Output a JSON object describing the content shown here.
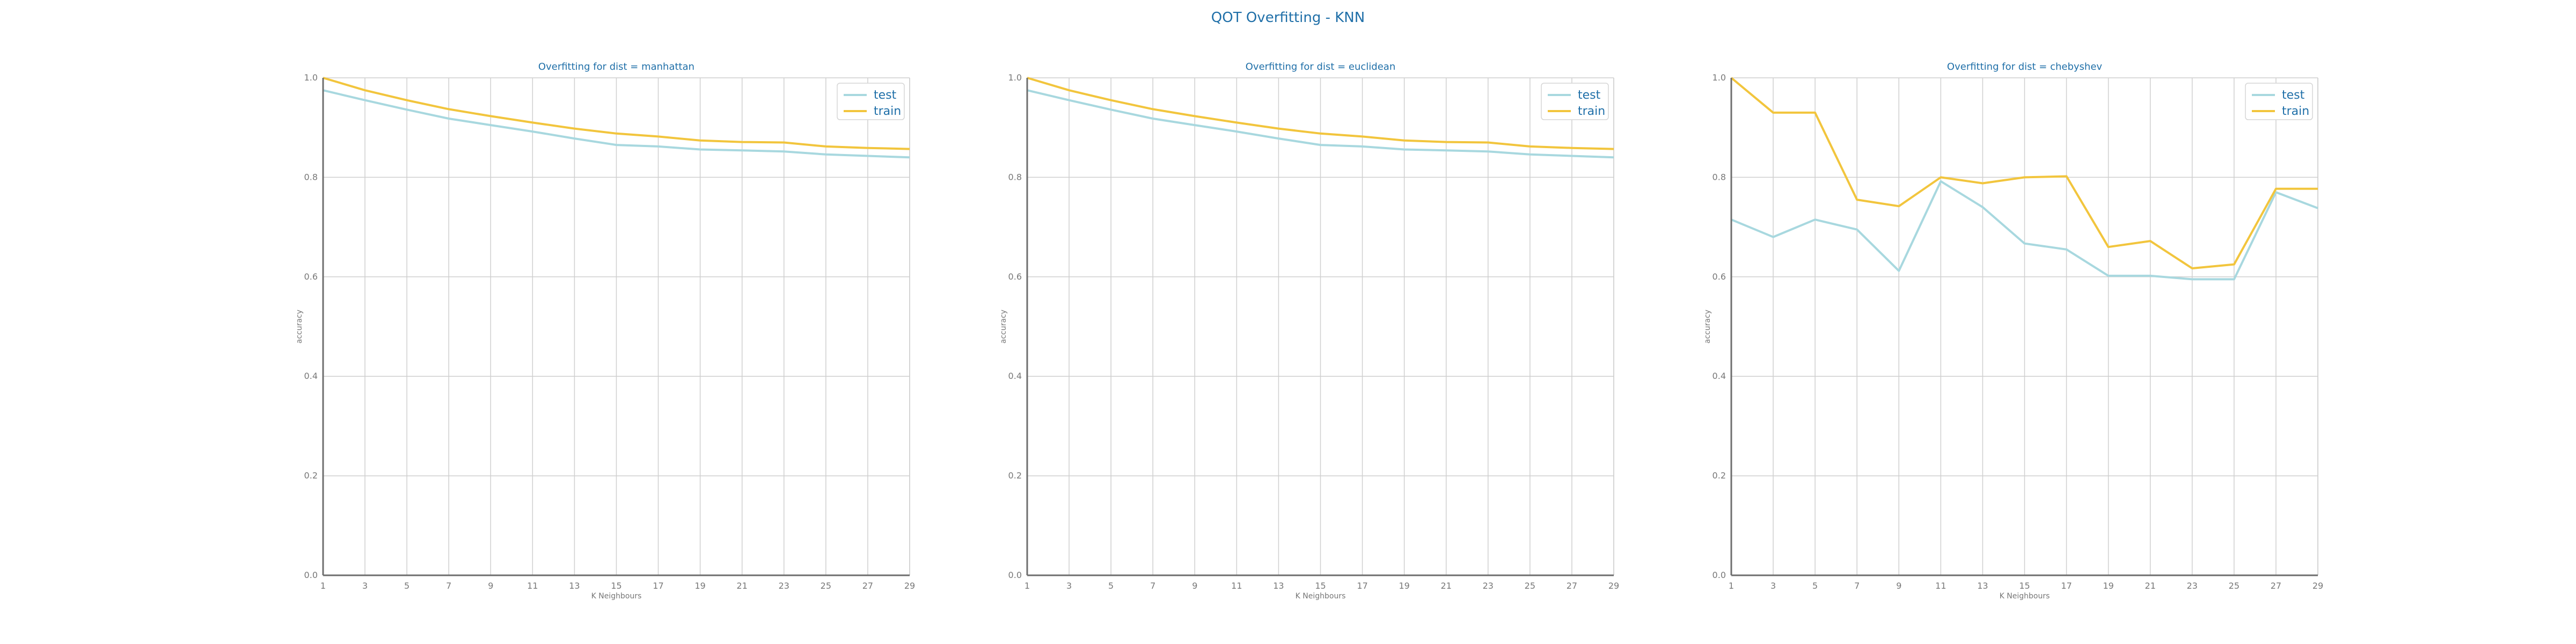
{
  "figure": {
    "title": "QOT Overfitting - KNN"
  },
  "colors": {
    "test": "#a8d8df",
    "train": "#f2c53d",
    "title": "#1f6fa8",
    "axis_text": "#777777",
    "grid": "#cfcfcf",
    "spine": "#6e6e6e"
  },
  "chart_data": [
    {
      "type": "line",
      "title": "Overfitting for dist = manhattan",
      "xlabel": "K Neighbours",
      "ylabel": "accuracy",
      "ylim": [
        0,
        1
      ],
      "xticks": [
        1,
        3,
        5,
        7,
        9,
        11,
        13,
        15,
        17,
        19,
        21,
        23,
        25,
        27,
        29
      ],
      "yticks": [
        "0.0",
        "0.2",
        "0.4",
        "0.6",
        "0.8",
        "1.0"
      ],
      "legend_position": "top-right",
      "x": [
        1,
        3,
        5,
        7,
        9,
        11,
        13,
        15,
        17,
        19,
        21,
        23,
        25,
        27,
        29
      ],
      "series": [
        {
          "name": "test",
          "values": [
            0.975,
            0.955,
            0.936,
            0.918,
            0.905,
            0.892,
            0.878,
            0.865,
            0.862,
            0.856,
            0.854,
            0.852,
            0.846,
            0.843,
            0.84
          ]
        },
        {
          "name": "train",
          "values": [
            1.0,
            0.975,
            0.955,
            0.937,
            0.923,
            0.91,
            0.898,
            0.888,
            0.882,
            0.874,
            0.871,
            0.87,
            0.862,
            0.859,
            0.857
          ]
        }
      ]
    },
    {
      "type": "line",
      "title": "Overfitting for dist = euclidean",
      "xlabel": "K Neighbours",
      "ylabel": "accuracy",
      "ylim": [
        0,
        1
      ],
      "xticks": [
        1,
        3,
        5,
        7,
        9,
        11,
        13,
        15,
        17,
        19,
        21,
        23,
        25,
        27,
        29
      ],
      "yticks": [
        "0.0",
        "0.2",
        "0.4",
        "0.6",
        "0.8",
        "1.0"
      ],
      "legend_position": "top-right",
      "x": [
        1,
        3,
        5,
        7,
        9,
        11,
        13,
        15,
        17,
        19,
        21,
        23,
        25,
        27,
        29
      ],
      "series": [
        {
          "name": "test",
          "values": [
            0.975,
            0.955,
            0.936,
            0.918,
            0.905,
            0.892,
            0.878,
            0.865,
            0.862,
            0.856,
            0.854,
            0.852,
            0.846,
            0.843,
            0.84
          ]
        },
        {
          "name": "train",
          "values": [
            1.0,
            0.975,
            0.955,
            0.937,
            0.923,
            0.91,
            0.898,
            0.888,
            0.882,
            0.874,
            0.871,
            0.87,
            0.862,
            0.859,
            0.857
          ]
        }
      ]
    },
    {
      "type": "line",
      "title": "Overfitting for dist = chebyshev",
      "xlabel": "K Neighbours",
      "ylabel": "accuracy",
      "ylim": [
        0,
        1
      ],
      "xticks": [
        1,
        3,
        5,
        7,
        9,
        11,
        13,
        15,
        17,
        19,
        21,
        23,
        25,
        27,
        29
      ],
      "yticks": [
        "0.0",
        "0.2",
        "0.4",
        "0.6",
        "0.8",
        "1.0"
      ],
      "legend_position": "top-right",
      "x": [
        1,
        3,
        5,
        7,
        9,
        11,
        13,
        15,
        17,
        19,
        21,
        23,
        25,
        27,
        29
      ],
      "series": [
        {
          "name": "test",
          "values": [
            0.715,
            0.68,
            0.715,
            0.695,
            0.612,
            0.792,
            0.74,
            0.667,
            0.655,
            0.602,
            0.602,
            0.595,
            0.595,
            0.77,
            0.738
          ]
        },
        {
          "name": "train",
          "values": [
            1.0,
            0.93,
            0.93,
            0.755,
            0.742,
            0.8,
            0.788,
            0.8,
            0.802,
            0.66,
            0.672,
            0.617,
            0.625,
            0.777,
            0.777
          ]
        }
      ]
    }
  ]
}
